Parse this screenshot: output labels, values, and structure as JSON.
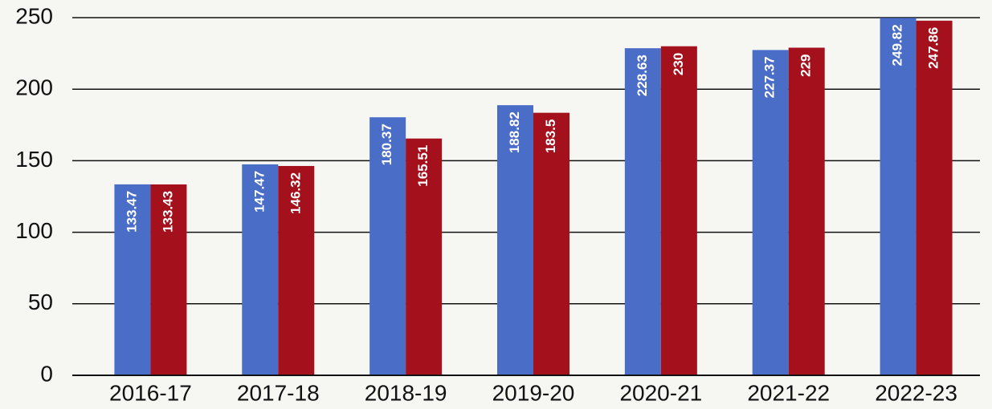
{
  "chart_data": {
    "type": "bar",
    "categories": [
      "2016-17",
      "2017-18",
      "2018-19",
      "2019-20",
      "2020-21",
      "2021-22",
      "2022-23"
    ],
    "series": [
      {
        "color": "#4a6ec8",
        "values": [
          133.47,
          147.47,
          180.37,
          188.82,
          228.63,
          227.37,
          249.82
        ]
      },
      {
        "color": "#a5101d",
        "values": [
          133.43,
          146.32,
          165.51,
          183.5,
          230,
          229,
          247.86
        ]
      }
    ],
    "ylim": [
      0,
      250
    ],
    "yticks": [
      0,
      50,
      100,
      150,
      200,
      250
    ],
    "grid": true
  }
}
